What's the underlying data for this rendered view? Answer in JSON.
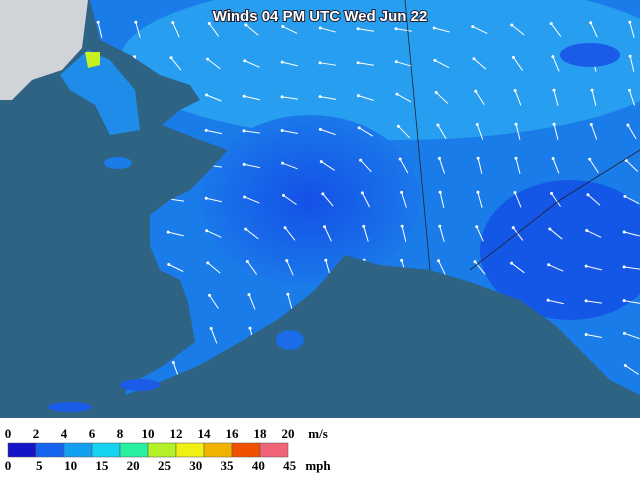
{
  "title": "Winds 04 PM UTC Wed Jun 22",
  "legend": {
    "ms_ticks": [
      0,
      2,
      4,
      6,
      8,
      10,
      12,
      14,
      16,
      18,
      20
    ],
    "ms_unit": "m/s",
    "mph_ticks": [
      0,
      5,
      10,
      15,
      20,
      25,
      30,
      35,
      40,
      45
    ],
    "mph_unit": "mph",
    "colors": [
      "#1414c8",
      "#1464f0",
      "#14a0f0",
      "#14d2f0",
      "#28f0a0",
      "#b4f028",
      "#f0f014",
      "#f0b400",
      "#f05000",
      "#f06478"
    ]
  }
}
